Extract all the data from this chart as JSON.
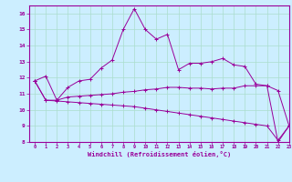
{
  "xlabel": "Windchill (Refroidissement éolien,°C)",
  "background_color": "#cceeff",
  "grid_color": "#aaddcc",
  "line_color": "#990099",
  "x_values": [
    0,
    1,
    2,
    3,
    4,
    5,
    6,
    7,
    8,
    9,
    10,
    11,
    12,
    13,
    14,
    15,
    16,
    17,
    18,
    19,
    20,
    21,
    22,
    23
  ],
  "line1": [
    11.8,
    12.1,
    10.6,
    11.4,
    11.8,
    11.9,
    12.6,
    13.1,
    15.0,
    16.3,
    15.0,
    14.4,
    14.7,
    12.5,
    12.9,
    12.9,
    13.0,
    13.2,
    12.8,
    12.7,
    11.6,
    11.5,
    8.0,
    9.0
  ],
  "line2": [
    11.8,
    10.6,
    10.6,
    10.8,
    10.85,
    10.9,
    10.95,
    11.0,
    11.1,
    11.15,
    11.25,
    11.3,
    11.4,
    11.4,
    11.35,
    11.35,
    11.3,
    11.35,
    11.35,
    11.5,
    11.5,
    11.5,
    11.2,
    9.0
  ],
  "line3": [
    11.8,
    10.6,
    10.55,
    10.5,
    10.45,
    10.4,
    10.35,
    10.3,
    10.25,
    10.2,
    10.1,
    10.0,
    9.9,
    9.8,
    9.7,
    9.6,
    9.5,
    9.4,
    9.3,
    9.2,
    9.1,
    9.0,
    8.1,
    9.0
  ],
  "ylim": [
    8,
    16.5
  ],
  "xlim": [
    -0.5,
    23
  ]
}
